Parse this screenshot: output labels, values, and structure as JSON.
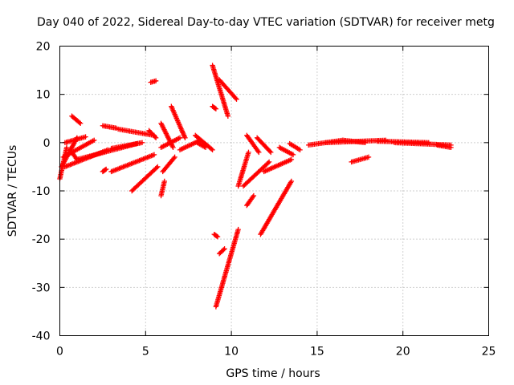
{
  "chart_data": {
    "type": "scatter",
    "title": "Day 040 of 2022, Sidereal Day-to-day VTEC variation (SDTVAR) for receiver metg",
    "xlabel": "GPS time / hours",
    "ylabel": "SDTVAR / TECUs",
    "xlim": [
      0,
      25
    ],
    "ylim": [
      -40,
      20
    ],
    "xticks": [
      0,
      5,
      10,
      15,
      20,
      25
    ],
    "yticks": [
      -40,
      -30,
      -20,
      -10,
      0,
      10,
      20
    ],
    "grid": true,
    "marker": "+",
    "color": "#ff0000",
    "series": [
      {
        "name": "SDTVAR",
        "tracks": [
          {
            "x0": 0.0,
            "x1": 0.4,
            "y0": -7.5,
            "y1": -1.0
          },
          {
            "x0": 0.1,
            "x1": 1.0,
            "y0": -5.0,
            "y1": 1.0
          },
          {
            "x0": 0.2,
            "x1": 2.0,
            "y0": -3.0,
            "y1": 0.5
          },
          {
            "x0": 0.3,
            "x1": 1.5,
            "y0": 0.0,
            "y1": 1.2
          },
          {
            "x0": 0.7,
            "x1": 1.2,
            "y0": 5.5,
            "y1": 4.0
          },
          {
            "x0": 0.6,
            "x1": 1.0,
            "y0": -1.5,
            "y1": -3.5
          },
          {
            "x0": 0.3,
            "x1": 2.8,
            "y0": -5.0,
            "y1": -1.5
          },
          {
            "x0": 1.0,
            "x1": 4.5,
            "y0": -3.5,
            "y1": -0.2
          },
          {
            "x0": 2.5,
            "x1": 2.7,
            "y0": -6.0,
            "y1": -5.5
          },
          {
            "x0": 3.0,
            "x1": 5.5,
            "y0": -6.0,
            "y1": -2.5
          },
          {
            "x0": 3.0,
            "x1": 4.8,
            "y0": -1.2,
            "y1": 0.0
          },
          {
            "x0": 2.5,
            "x1": 3.3,
            "y0": 3.5,
            "y1": 3.0
          },
          {
            "x0": 3.4,
            "x1": 5.5,
            "y0": 2.8,
            "y1": 1.5
          },
          {
            "x0": 4.2,
            "x1": 5.7,
            "y0": -10.0,
            "y1": -5.0
          },
          {
            "x0": 5.2,
            "x1": 5.6,
            "y0": 2.5,
            "y1": 1.0
          },
          {
            "x0": 5.3,
            "x1": 5.6,
            "y0": 12.5,
            "y1": 12.8
          },
          {
            "x0": 5.9,
            "x1": 6.1,
            "y0": -11.0,
            "y1": -8.0
          },
          {
            "x0": 5.9,
            "x1": 6.6,
            "y0": 4.0,
            "y1": -1.0
          },
          {
            "x0": 6.0,
            "x1": 6.7,
            "y0": -6.0,
            "y1": -3.0
          },
          {
            "x0": 5.9,
            "x1": 7.0,
            "y0": -1.0,
            "y1": 1.0
          },
          {
            "x0": 6.5,
            "x1": 7.3,
            "y0": 7.5,
            "y1": 1.0
          },
          {
            "x0": 7.0,
            "x1": 8.2,
            "y0": -1.5,
            "y1": 0.5
          },
          {
            "x0": 7.9,
            "x1": 8.9,
            "y0": 1.5,
            "y1": -1.5
          },
          {
            "x0": 8.0,
            "x1": 8.5,
            "y0": 0.0,
            "y1": -1.0
          },
          {
            "x0": 8.9,
            "x1": 9.8,
            "y0": 16.0,
            "y1": 5.5
          },
          {
            "x0": 9.3,
            "x1": 10.3,
            "y0": 13.0,
            "y1": 9.0
          },
          {
            "x0": 8.9,
            "x1": 9.1,
            "y0": 7.5,
            "y1": 7.0
          },
          {
            "x0": 9.0,
            "x1": 9.2,
            "y0": -19.0,
            "y1": -19.5
          },
          {
            "x0": 9.1,
            "x1": 10.4,
            "y0": -34.0,
            "y1": -18.0
          },
          {
            "x0": 9.3,
            "x1": 9.6,
            "y0": -23.0,
            "y1": -22.0
          },
          {
            "x0": 10.4,
            "x1": 11.0,
            "y0": -9.0,
            "y1": -2.0
          },
          {
            "x0": 10.7,
            "x1": 12.2,
            "y0": -9.0,
            "y1": -4.0
          },
          {
            "x0": 10.9,
            "x1": 11.6,
            "y0": 1.5,
            "y1": -2.0
          },
          {
            "x0": 10.9,
            "x1": 11.3,
            "y0": -13.0,
            "y1": -11.0
          },
          {
            "x0": 11.5,
            "x1": 12.3,
            "y0": 1.0,
            "y1": -2.0
          },
          {
            "x0": 11.7,
            "x1": 13.5,
            "y0": -19.0,
            "y1": -8.0
          },
          {
            "x0": 11.9,
            "x1": 13.5,
            "y0": -6.0,
            "y1": -3.5
          },
          {
            "x0": 12.8,
            "x1": 13.6,
            "y0": -1.0,
            "y1": -2.5
          },
          {
            "x0": 13.4,
            "x1": 14.0,
            "y0": -0.2,
            "y1": -1.5
          },
          {
            "x0": 14.5,
            "x1": 16.5,
            "y0": -0.5,
            "y1": 0.5
          },
          {
            "x0": 15.5,
            "x1": 19.0,
            "y0": 0.0,
            "y1": 0.5
          },
          {
            "x0": 16.5,
            "x1": 17.8,
            "y0": 0.5,
            "y1": 0.0
          },
          {
            "x0": 17.0,
            "x1": 18.0,
            "y0": -4.0,
            "y1": -3.0
          },
          {
            "x0": 18.5,
            "x1": 21.5,
            "y0": 0.3,
            "y1": 0.0
          },
          {
            "x0": 19.5,
            "x1": 22.8,
            "y0": 0.0,
            "y1": -0.5
          },
          {
            "x0": 22.0,
            "x1": 22.8,
            "y0": -0.5,
            "y1": -1.0
          }
        ]
      }
    ]
  }
}
